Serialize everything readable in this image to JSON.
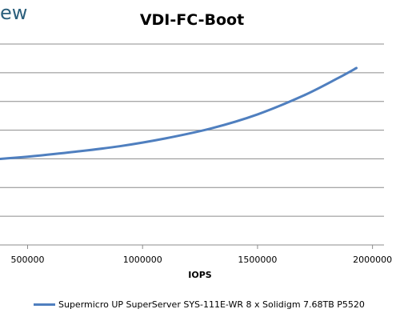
{
  "brand": {
    "partial_text": "ew",
    "color": "#2b5f7c"
  },
  "chart_data": {
    "type": "line",
    "title": "VDI-FC-Boot",
    "xlabel": "IOPS",
    "ylabel": "",
    "x_ticks": [
      500000,
      1000000,
      1500000,
      2000000
    ],
    "x_tick_labels": [
      "500000",
      "1000000",
      "1500000",
      "2000000"
    ],
    "xlim": [
      380000,
      2050000
    ],
    "grid": "horizontal",
    "legend_position": "bottom",
    "series": [
      {
        "name": "Supermicro UP SuperServer SYS-111E-WR 8 x Solidigm 7.68TB P5520",
        "color": "#4f7fbf",
        "x": [
          380000,
          500000,
          700000,
          900000,
          1100000,
          1300000,
          1500000,
          1700000,
          1850000,
          1930000
        ],
        "y": [
          0.197,
          0.202,
          0.213,
          0.226,
          0.244,
          0.267,
          0.299,
          0.342,
          0.382,
          0.405
        ]
      }
    ],
    "ylim": [
      0.0,
      0.46
    ]
  }
}
